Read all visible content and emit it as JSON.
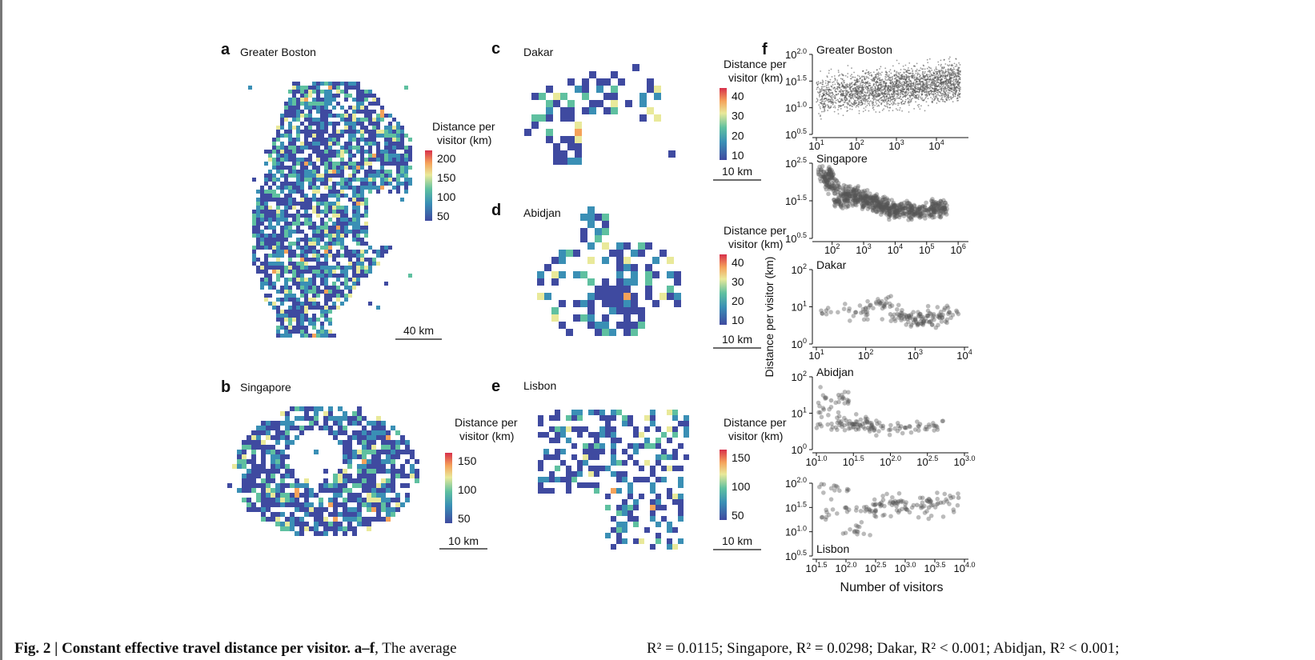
{
  "panels": {
    "a": {
      "letter": "a",
      "title": "Greater Boston",
      "legend_title": [
        "Distance per",
        "visitor (km)"
      ],
      "legend_ticks": [
        "200",
        "150",
        "100",
        "50"
      ],
      "scale_bar": "40 km"
    },
    "b": {
      "letter": "b",
      "title": "Singapore",
      "legend_title": [
        "Distance per",
        "visitor (km)"
      ],
      "legend_ticks": [
        "150",
        "100",
        "50"
      ],
      "scale_bar": "10 km"
    },
    "c": {
      "letter": "c",
      "title": "Dakar",
      "legend_title": [
        "Distance per",
        "visitor (km)"
      ],
      "legend_ticks": [
        "40",
        "30",
        "20",
        "10"
      ],
      "scale_bar": "10 km"
    },
    "d": {
      "letter": "d",
      "title": "Abidjan",
      "legend_title": [
        "Distance per",
        "visitor (km)"
      ],
      "legend_ticks": [
        "40",
        "30",
        "20",
        "10"
      ],
      "scale_bar": "10 km"
    },
    "e": {
      "letter": "e",
      "title": "Lisbon",
      "legend_title": [
        "Distance per",
        "visitor (km)"
      ],
      "legend_ticks": [
        "150",
        "100",
        "50"
      ],
      "scale_bar": "10 km"
    }
  },
  "colorbar": {
    "colors": [
      "#3f4aa0",
      "#3a8fb5",
      "#5fc0a0",
      "#e9e99a",
      "#f5a25a",
      "#d7304a"
    ]
  },
  "panel_f": {
    "letter": "f",
    "ylabel": "Distance per visitor (km)",
    "xlabel": "Number of visitors",
    "point_color": "#555555"
  },
  "chart_data": [
    {
      "type": "scatter",
      "title": "Greater Boston",
      "xscale": "log",
      "yscale": "log",
      "x_ticks": [
        "10^1",
        "10^2",
        "10^3",
        "10^4"
      ],
      "y_ticks": [
        "10^0.5",
        "10^1.0",
        "10^1.5",
        "10^2.0"
      ],
      "xlim": [
        1,
        4.7
      ],
      "ylim": [
        0.5,
        2.0
      ],
      "point_count_hint": "dense cloud",
      "points": [
        [
          1.1,
          1.2
        ],
        [
          1.3,
          1.4
        ],
        [
          1.5,
          1.1
        ],
        [
          1.8,
          1.3
        ],
        [
          2.0,
          1.5
        ],
        [
          2.2,
          1.2
        ],
        [
          2.5,
          1.35
        ],
        [
          2.8,
          1.45
        ],
        [
          3.0,
          1.3
        ],
        [
          3.3,
          1.5
        ],
        [
          3.6,
          1.4
        ],
        [
          4.0,
          1.5
        ],
        [
          4.4,
          1.6
        ]
      ]
    },
    {
      "type": "scatter",
      "title": "Singapore",
      "xscale": "log",
      "yscale": "log",
      "x_ticks": [
        "10^2",
        "10^3",
        "10^4",
        "10^5",
        "10^6"
      ],
      "y_ticks": [
        "10^0.5",
        "10^1.5",
        "10^2.5"
      ],
      "xlim": [
        1.5,
        6.2
      ],
      "ylim": [
        0.5,
        2.5
      ],
      "points": [
        [
          1.8,
          2.2
        ],
        [
          2.0,
          1.9
        ],
        [
          2.3,
          1.5
        ],
        [
          2.6,
          1.7
        ],
        [
          2.9,
          1.6
        ],
        [
          3.2,
          1.5
        ],
        [
          3.5,
          1.4
        ],
        [
          3.8,
          1.3
        ],
        [
          4.0,
          1.2
        ],
        [
          4.3,
          1.3
        ],
        [
          4.6,
          1.2
        ],
        [
          5.0,
          1.25
        ],
        [
          5.4,
          1.3
        ]
      ]
    },
    {
      "type": "scatter",
      "title": "Dakar",
      "xscale": "log",
      "yscale": "log",
      "x_ticks": [
        "10^1",
        "10^2",
        "10^3",
        "10^4"
      ],
      "y_ticks": [
        "10^0",
        "10^1",
        "10^2"
      ],
      "xlim": [
        1,
        4
      ],
      "ylim": [
        0,
        2
      ],
      "points": [
        [
          1.2,
          0.9
        ],
        [
          1.8,
          0.85
        ],
        [
          2.1,
          1.05
        ],
        [
          2.3,
          1.1
        ],
        [
          2.5,
          0.8
        ],
        [
          2.7,
          0.75
        ],
        [
          2.9,
          0.7
        ],
        [
          3.0,
          0.65
        ],
        [
          3.1,
          0.8
        ],
        [
          3.3,
          0.6
        ],
        [
          3.5,
          0.7
        ],
        [
          3.7,
          0.85
        ]
      ]
    },
    {
      "type": "scatter",
      "title": "Abidjan",
      "xscale": "log",
      "yscale": "log",
      "x_ticks": [
        "10^1.0",
        "10^1.5",
        "10^2.0",
        "10^2.5",
        "10^3.0"
      ],
      "y_ticks": [
        "10^0",
        "10^1",
        "10^2"
      ],
      "xlim": [
        1.0,
        3.0
      ],
      "ylim": [
        0,
        2
      ],
      "points": [
        [
          1.05,
          0.7
        ],
        [
          1.1,
          1.1
        ],
        [
          1.2,
          1.35
        ],
        [
          1.3,
          1.5
        ],
        [
          1.4,
          0.8
        ],
        [
          1.5,
          0.7
        ],
        [
          1.6,
          0.65
        ],
        [
          1.7,
          0.6
        ],
        [
          1.9,
          0.65
        ],
        [
          2.0,
          0.55
        ],
        [
          2.2,
          0.6
        ],
        [
          2.4,
          0.7
        ],
        [
          2.6,
          0.65
        ]
      ]
    },
    {
      "type": "scatter",
      "title": "Lisbon",
      "xscale": "log",
      "yscale": "log",
      "x_ticks": [
        "10^1.5",
        "10^2.0",
        "10^2.5",
        "10^3.0",
        "10^3.5",
        "10^4.0"
      ],
      "y_ticks": [
        "10^0.5",
        "10^1.0",
        "10^1.5",
        "10^2.0"
      ],
      "xlim": [
        1.5,
        4.0
      ],
      "ylim": [
        0.5,
        2.0
      ],
      "points": [
        [
          1.6,
          1.3
        ],
        [
          1.8,
          1.95
        ],
        [
          2.0,
          1.5
        ],
        [
          2.2,
          1.0
        ],
        [
          2.4,
          1.45
        ],
        [
          2.6,
          1.55
        ],
        [
          2.8,
          1.6
        ],
        [
          3.0,
          1.5
        ],
        [
          3.2,
          1.55
        ],
        [
          3.4,
          1.5
        ],
        [
          3.6,
          1.6
        ],
        [
          3.9,
          1.7
        ]
      ]
    }
  ],
  "caption": {
    "left_bold": "Fig. 2 | Constant effective travel distance per visitor.",
    "left_bold2": "a–f",
    "left_rest": ", The average",
    "right": "R² = 0.0115; Singapore, R² = 0.0298; Dakar, R² < 0.001; Abidjan, R² < 0.001;"
  }
}
